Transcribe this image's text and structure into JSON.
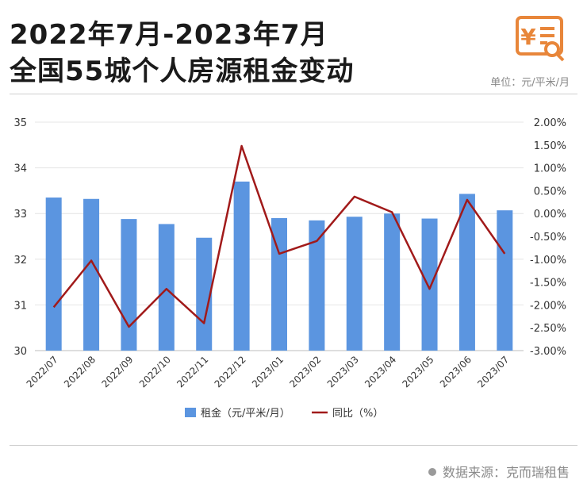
{
  "header": {
    "title_line1": "2022年7月-2023年7月",
    "title_line2": "全国55城个人房源租金变动",
    "unit": "单位：元/平米/月"
  },
  "logo": {
    "icon": "yuan-document-search-icon",
    "color": "#e8863a",
    "symbol": "¥"
  },
  "source": {
    "text": "数据来源：克而瑞租售"
  },
  "colors": {
    "bar": "#5b95e0",
    "line": "#a11a1a",
    "grid": "#e4e4e4",
    "axis": "#bdbdbd"
  },
  "chart_data": {
    "type": "bar",
    "categories": [
      "2022/07",
      "2022/08",
      "2022/09",
      "2022/10",
      "2022/11",
      "2022/12",
      "2023/01",
      "2023/02",
      "2023/03",
      "2023/04",
      "2023/05",
      "2023/06",
      "2023/07"
    ],
    "series": [
      {
        "name": "租金（元/平米/月）",
        "type": "bar",
        "axis": "left",
        "values": [
          33.35,
          33.32,
          32.88,
          32.77,
          32.47,
          33.7,
          32.9,
          32.85,
          32.93,
          33.0,
          32.89,
          33.43,
          33.07
        ]
      },
      {
        "name": "同比（%）",
        "type": "line",
        "axis": "right",
        "values": [
          -2.05,
          -1.03,
          -2.48,
          -1.65,
          -2.4,
          1.48,
          -0.88,
          -0.6,
          0.37,
          0.03,
          -1.65,
          0.3,
          -0.88
        ]
      }
    ],
    "ylim_left": [
      30,
      35
    ],
    "yticks_left": [
      "30",
      "31",
      "32",
      "33",
      "34",
      "35"
    ],
    "ylim_right": [
      -3,
      2
    ],
    "yticks_right": [
      "-3.00%",
      "-2.50%",
      "-2.00%",
      "-1.50%",
      "-1.00%",
      "-0.50%",
      "0.00%",
      "0.50%",
      "1.00%",
      "1.50%",
      "2.00%"
    ],
    "grid": true,
    "legend_position": "bottom"
  }
}
